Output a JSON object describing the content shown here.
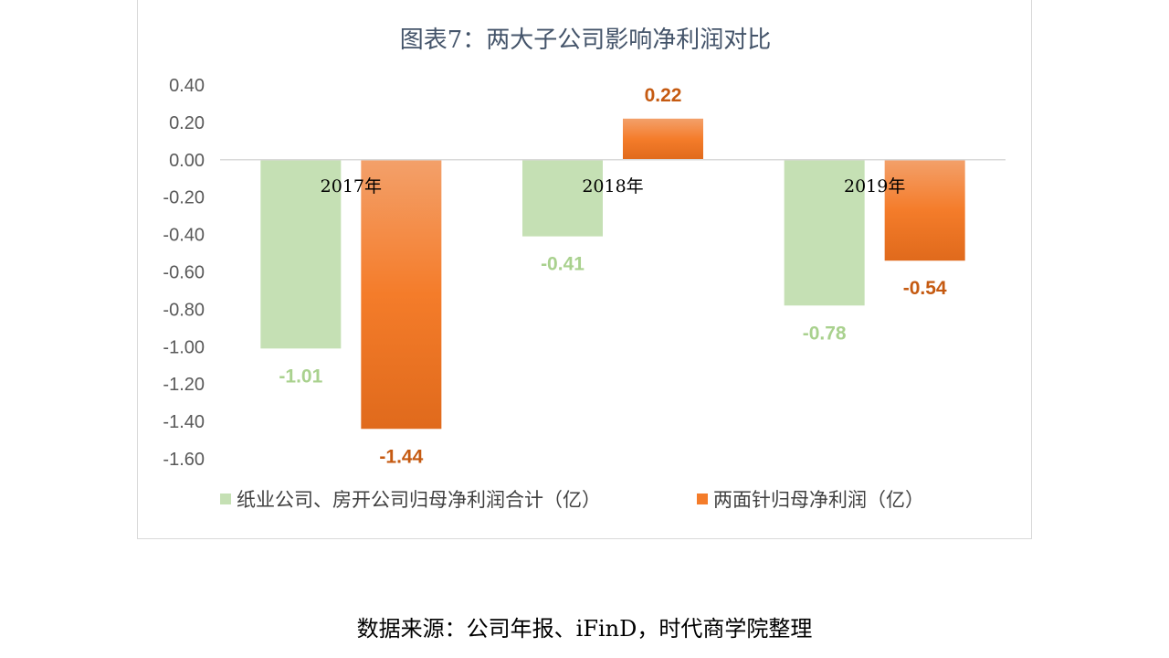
{
  "chart_data": {
    "type": "bar",
    "title": "图表7：两大子公司影响净利润对比",
    "categories": [
      "2017年",
      "2018年",
      "2019年"
    ],
    "series": [
      {
        "name": "纸业公司、房开公司归母净利润合计（亿）",
        "values": [
          -1.01,
          -0.41,
          -0.78
        ],
        "color": "#c5e0b4",
        "label_color": "#a9d18e"
      },
      {
        "name": "两面针归母净利润（亿）",
        "values": [
          -1.44,
          0.22,
          -0.54
        ],
        "color": "#f47c2a",
        "label_color": "#c55a11"
      }
    ],
    "data_labels": [
      [
        "-1.01",
        "-0.41",
        "-0.78"
      ],
      [
        "-1.44",
        "0.22",
        "-0.54"
      ]
    ],
    "yticks": [
      "0.40",
      "0.20",
      "0.00",
      "-0.20",
      "-0.40",
      "-0.60",
      "-0.80",
      "-1.00",
      "-1.20",
      "-1.40",
      "-1.60"
    ],
    "ylim": [
      -1.6,
      0.4
    ],
    "grid": false,
    "legend": "bottom",
    "xlabel": "",
    "ylabel": ""
  },
  "source": "数据来源：公司年报、iFinD，时代商学院整理"
}
